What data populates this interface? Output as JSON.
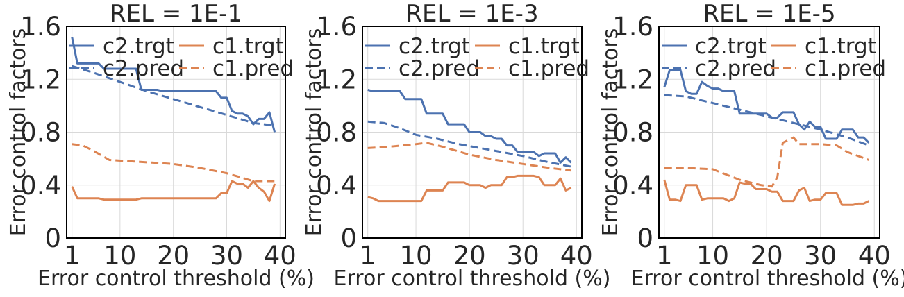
{
  "chart_data": [
    {
      "type": "line",
      "title": "REL = 1E-1",
      "xlabel": "Error control threshold (%)",
      "ylabel": "Error control factors",
      "xlim": [
        0,
        41
      ],
      "ylim": [
        0,
        1.6
      ],
      "xticks": [
        1,
        10,
        20,
        30,
        40
      ],
      "xtick_labels": [
        "1",
        "10",
        "20",
        "30",
        "40"
      ],
      "yticks": [
        0,
        0.4,
        0.8,
        1.2,
        1.6
      ],
      "ytick_labels": [
        "0",
        "0.4",
        "0.8",
        "1.2",
        "1.6"
      ],
      "grid": true,
      "legend": {
        "placement": "top",
        "columns": 2
      },
      "series": [
        {
          "name": "c2.trgt",
          "color": "#4c72b0",
          "dash": "solid",
          "x": [
            1,
            2,
            3,
            4,
            5,
            6,
            7,
            8,
            9,
            10,
            11,
            12,
            13,
            14,
            15,
            16,
            17,
            18,
            19,
            20,
            21,
            22,
            23,
            24,
            25,
            26,
            27,
            28,
            29,
            30,
            31,
            32,
            33,
            34,
            35,
            36,
            37,
            38,
            39
          ],
          "y": [
            1.52,
            1.32,
            1.32,
            1.32,
            1.32,
            1.32,
            1.28,
            1.28,
            1.28,
            1.28,
            1.28,
            1.28,
            1.28,
            1.12,
            1.12,
            1.12,
            1.12,
            1.11,
            1.11,
            1.11,
            1.11,
            1.11,
            1.11,
            1.11,
            1.11,
            1.11,
            1.11,
            1.11,
            1.06,
            1.06,
            0.96,
            0.94,
            0.94,
            0.92,
            0.86,
            0.9,
            0.9,
            0.95,
            0.8
          ]
        },
        {
          "name": "c2.pred",
          "color": "#4c72b0",
          "dash": "dashed",
          "x": [
            1,
            5,
            10,
            15,
            20,
            25,
            30,
            35,
            39
          ],
          "y": [
            1.3,
            1.25,
            1.18,
            1.11,
            1.05,
            0.99,
            0.93,
            0.87,
            0.85
          ]
        },
        {
          "name": "c1.trgt",
          "color": "#dd8452",
          "dash": "solid",
          "x": [
            1,
            2,
            3,
            4,
            5,
            6,
            7,
            8,
            9,
            10,
            11,
            12,
            13,
            14,
            15,
            16,
            17,
            18,
            19,
            20,
            21,
            22,
            23,
            24,
            25,
            26,
            27,
            28,
            29,
            30,
            31,
            32,
            33,
            34,
            35,
            36,
            37,
            38,
            39
          ],
          "y": [
            0.39,
            0.3,
            0.3,
            0.3,
            0.3,
            0.3,
            0.29,
            0.29,
            0.29,
            0.29,
            0.29,
            0.29,
            0.29,
            0.3,
            0.3,
            0.3,
            0.3,
            0.3,
            0.3,
            0.3,
            0.3,
            0.3,
            0.3,
            0.3,
            0.3,
            0.3,
            0.3,
            0.3,
            0.34,
            0.34,
            0.43,
            0.41,
            0.41,
            0.38,
            0.43,
            0.38,
            0.35,
            0.28,
            0.41
          ]
        },
        {
          "name": "c1.pred",
          "color": "#dd8452",
          "dash": "dashed",
          "x": [
            1,
            3,
            5,
            8,
            12,
            16,
            20,
            25,
            30,
            35,
            39
          ],
          "y": [
            0.71,
            0.7,
            0.66,
            0.59,
            0.58,
            0.57,
            0.56,
            0.53,
            0.49,
            0.43,
            0.43
          ]
        }
      ]
    },
    {
      "type": "line",
      "title": "REL = 1E-3",
      "xlabel": "Error control threshold (%)",
      "ylabel": "Error control factors",
      "xlim": [
        0,
        41
      ],
      "ylim": [
        0,
        1.6
      ],
      "xticks": [
        1,
        10,
        20,
        30,
        40
      ],
      "xtick_labels": [
        "1",
        "10",
        "20",
        "30",
        "40"
      ],
      "yticks": [
        0,
        0.4,
        0.8,
        1.2,
        1.6
      ],
      "ytick_labels": [
        "0",
        "0.4",
        "0.8",
        "1.2",
        "1.6"
      ],
      "grid": true,
      "legend": {
        "placement": "top",
        "columns": 2
      },
      "series": [
        {
          "name": "c2.trgt",
          "color": "#4c72b0",
          "dash": "solid",
          "x": [
            1,
            2,
            3,
            4,
            5,
            6,
            7,
            8,
            9,
            10,
            11,
            12,
            13,
            14,
            15,
            16,
            17,
            18,
            19,
            20,
            21,
            22,
            23,
            24,
            25,
            26,
            27,
            28,
            29,
            30,
            31,
            32,
            33,
            34,
            35,
            36,
            37,
            38,
            39
          ],
          "y": [
            1.12,
            1.11,
            1.11,
            1.11,
            1.11,
            1.11,
            1.11,
            1.05,
            1.05,
            1.05,
            1.05,
            0.94,
            0.94,
            0.94,
            0.94,
            0.86,
            0.86,
            0.86,
            0.86,
            0.8,
            0.8,
            0.8,
            0.77,
            0.77,
            0.75,
            0.75,
            0.7,
            0.7,
            0.65,
            0.65,
            0.65,
            0.65,
            0.62,
            0.64,
            0.64,
            0.64,
            0.57,
            0.61,
            0.57
          ]
        },
        {
          "name": "c2.pred",
          "color": "#4c72b0",
          "dash": "dashed",
          "x": [
            1,
            4,
            7,
            10,
            14,
            18,
            22,
            26,
            30,
            34,
            39
          ],
          "y": [
            0.88,
            0.87,
            0.83,
            0.78,
            0.75,
            0.71,
            0.68,
            0.65,
            0.62,
            0.58,
            0.54
          ]
        },
        {
          "name": "c1.trgt",
          "color": "#dd8452",
          "dash": "solid",
          "x": [
            1,
            2,
            3,
            4,
            5,
            6,
            7,
            8,
            9,
            10,
            11,
            12,
            13,
            14,
            15,
            16,
            17,
            18,
            19,
            20,
            21,
            22,
            23,
            24,
            25,
            26,
            27,
            28,
            29,
            30,
            31,
            32,
            33,
            34,
            35,
            36,
            37,
            38,
            39
          ],
          "y": [
            0.31,
            0.3,
            0.28,
            0.28,
            0.28,
            0.28,
            0.28,
            0.28,
            0.28,
            0.28,
            0.28,
            0.36,
            0.36,
            0.36,
            0.36,
            0.42,
            0.42,
            0.42,
            0.42,
            0.4,
            0.4,
            0.4,
            0.38,
            0.4,
            0.4,
            0.4,
            0.46,
            0.46,
            0.47,
            0.47,
            0.47,
            0.47,
            0.46,
            0.4,
            0.4,
            0.4,
            0.45,
            0.36,
            0.38
          ]
        },
        {
          "name": "c1.pred",
          "color": "#dd8452",
          "dash": "dashed",
          "x": [
            1,
            5,
            10,
            12,
            15,
            20,
            25,
            30,
            35,
            39
          ],
          "y": [
            0.68,
            0.69,
            0.71,
            0.72,
            0.69,
            0.63,
            0.59,
            0.56,
            0.53,
            0.51
          ]
        }
      ]
    },
    {
      "type": "line",
      "title": "REL = 1E-5",
      "xlabel": "Error control threshold (%)",
      "ylabel": "Error control factors",
      "xlim": [
        0,
        41
      ],
      "ylim": [
        0,
        1.6
      ],
      "xticks": [
        1,
        10,
        20,
        30,
        40
      ],
      "xtick_labels": [
        "1",
        "10",
        "20",
        "30",
        "40"
      ],
      "yticks": [
        0,
        0.4,
        0.8,
        1.2,
        1.6
      ],
      "ytick_labels": [
        "0",
        "0.4",
        "0.8",
        "1.2",
        "1.6"
      ],
      "grid": true,
      "legend": {
        "placement": "top",
        "columns": 2
      },
      "series": [
        {
          "name": "c2.trgt",
          "color": "#4c72b0",
          "dash": "solid",
          "x": [
            1,
            2,
            3,
            4,
            5,
            6,
            7,
            8,
            9,
            10,
            11,
            12,
            13,
            14,
            15,
            16,
            17,
            18,
            19,
            20,
            21,
            22,
            23,
            24,
            25,
            26,
            27,
            28,
            29,
            30,
            31,
            32,
            33,
            34,
            35,
            36,
            37,
            38,
            39
          ],
          "y": [
            1.14,
            1.27,
            1.27,
            1.27,
            1.11,
            1.09,
            1.09,
            1.18,
            1.15,
            1.13,
            1.13,
            1.11,
            1.11,
            1.11,
            0.94,
            0.94,
            0.94,
            0.94,
            0.94,
            0.94,
            0.91,
            0.91,
            0.95,
            0.95,
            0.95,
            0.86,
            0.82,
            0.88,
            0.84,
            0.84,
            0.75,
            0.75,
            0.75,
            0.82,
            0.82,
            0.82,
            0.76,
            0.76,
            0.72
          ]
        },
        {
          "name": "c2.pred",
          "color": "#4c72b0",
          "dash": "dashed",
          "x": [
            1,
            5,
            10,
            15,
            20,
            25,
            30,
            35,
            39
          ],
          "y": [
            1.08,
            1.07,
            1.02,
            0.97,
            0.92,
            0.87,
            0.82,
            0.76,
            0.7
          ]
        },
        {
          "name": "c1.trgt",
          "color": "#dd8452",
          "dash": "solid",
          "x": [
            1,
            2,
            3,
            4,
            5,
            6,
            7,
            8,
            9,
            10,
            11,
            12,
            13,
            14,
            15,
            16,
            17,
            18,
            19,
            20,
            21,
            22,
            23,
            24,
            25,
            26,
            27,
            28,
            29,
            30,
            31,
            32,
            33,
            34,
            35,
            36,
            37,
            38,
            39
          ],
          "y": [
            0.44,
            0.29,
            0.29,
            0.28,
            0.4,
            0.4,
            0.4,
            0.29,
            0.3,
            0.3,
            0.3,
            0.3,
            0.28,
            0.3,
            0.42,
            0.41,
            0.41,
            0.37,
            0.37,
            0.37,
            0.35,
            0.35,
            0.28,
            0.28,
            0.28,
            0.36,
            0.38,
            0.28,
            0.29,
            0.29,
            0.34,
            0.34,
            0.34,
            0.25,
            0.25,
            0.25,
            0.26,
            0.26,
            0.28
          ]
        },
        {
          "name": "c1.pred",
          "color": "#dd8452",
          "dash": "dashed",
          "x": [
            1,
            5,
            10,
            15,
            19,
            21,
            22,
            23,
            25,
            26,
            27,
            30,
            33,
            35,
            39
          ],
          "y": [
            0.53,
            0.53,
            0.52,
            0.44,
            0.4,
            0.39,
            0.46,
            0.72,
            0.76,
            0.71,
            0.71,
            0.71,
            0.7,
            0.65,
            0.59
          ]
        }
      ]
    }
  ]
}
